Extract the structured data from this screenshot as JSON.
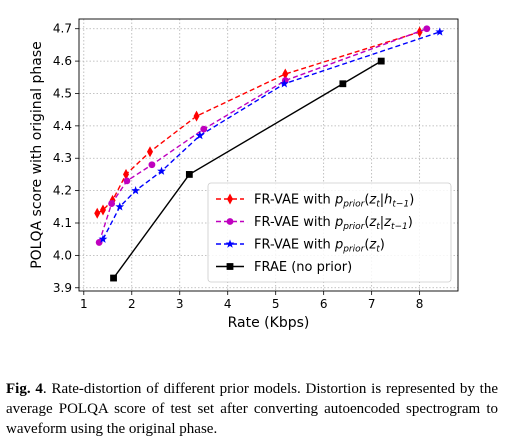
{
  "caption": {
    "label": "Fig. 4",
    "text": ". Rate-distortion of different prior models. Distortion is represented by the average POLQA score of test set after converting autoencoded spectrogram to waveform using the original phase."
  },
  "chart_data": {
    "type": "line",
    "title": "",
    "xlabel": "Rate (Kbps)",
    "ylabel": "POLQA score with original phase",
    "xlim": [
      0.9,
      8.8
    ],
    "ylim": [
      3.89,
      4.73
    ],
    "xticks": [
      1,
      2,
      3,
      4,
      5,
      6,
      7,
      8
    ],
    "yticks": [
      3.9,
      4.0,
      4.1,
      4.2,
      4.3,
      4.4,
      4.5,
      4.6,
      4.7
    ],
    "grid": true,
    "legend_position": "bottom-right",
    "series": [
      {
        "legend": [
          "FR-VAE with ",
          "p",
          "prior",
          "(",
          "z",
          "t",
          "|",
          "h",
          "t−1",
          ")"
        ],
        "color": "#ff0000",
        "linestyle": "dashed",
        "marker": "thin-diamond",
        "x": [
          1.28,
          1.4,
          1.6,
          1.88,
          2.38,
          3.35,
          5.2,
          8.0
        ],
        "y": [
          4.13,
          4.14,
          4.17,
          4.25,
          4.32,
          4.43,
          4.56,
          4.69
        ]
      },
      {
        "legend": [
          "FR-VAE with ",
          "p",
          "prior",
          "(",
          "z",
          "t",
          "|",
          "z",
          "t−1",
          ")"
        ],
        "color": "#bf00bf",
        "linestyle": "dashed",
        "marker": "circle",
        "x": [
          1.32,
          1.58,
          1.9,
          2.42,
          3.5,
          5.2,
          8.15
        ],
        "y": [
          4.04,
          4.16,
          4.23,
          4.28,
          4.39,
          4.54,
          4.7
        ]
      },
      {
        "legend": [
          "FR-VAE with ",
          "p",
          "prior",
          "(",
          "z",
          "t",
          ")"
        ],
        "color": "#0000ff",
        "linestyle": "dashed",
        "marker": "star",
        "x": [
          1.4,
          1.75,
          2.08,
          2.62,
          3.42,
          5.18,
          8.42
        ],
        "y": [
          4.05,
          4.15,
          4.2,
          4.26,
          4.37,
          4.53,
          4.69
        ]
      },
      {
        "legend": [
          "FRAE (no prior)"
        ],
        "color": "#000000",
        "linestyle": "solid",
        "marker": "square",
        "x": [
          1.62,
          3.2,
          6.4,
          7.2
        ],
        "y": [
          3.93,
          4.25,
          4.53,
          4.6
        ]
      }
    ]
  }
}
